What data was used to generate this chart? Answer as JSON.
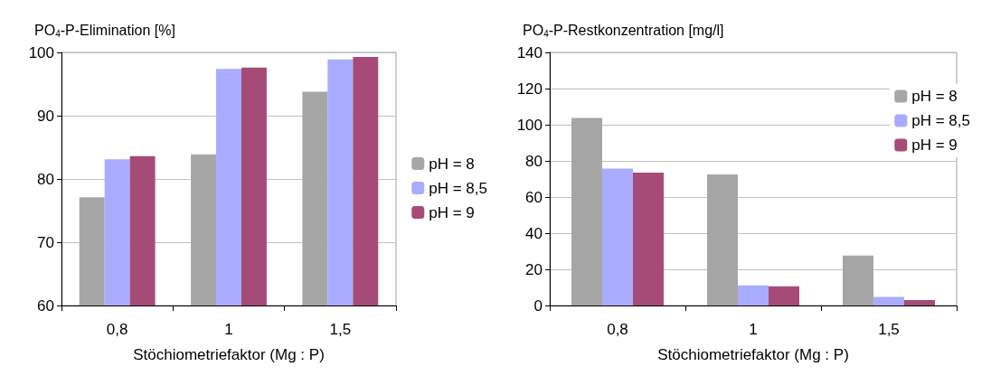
{
  "chart_data": [
    {
      "type": "bar",
      "ylabel": "PO$_{4}$-P-Elimination [%]",
      "xlabel": "Stöchiometriefaktor (Mg : P)",
      "categories": [
        "0,8",
        "1",
        "1,5"
      ],
      "series": [
        {
          "name": "pH = 8",
          "color": "#a6a6a6",
          "values": [
            77.1,
            83.9,
            93.8
          ]
        },
        {
          "name": "pH = 8,5",
          "color": "#a9acfe",
          "values": [
            83.1,
            97.4,
            98.9
          ]
        },
        {
          "name": "pH = 9",
          "color": "#a64b77",
          "values": [
            83.6,
            97.6,
            99.3
          ]
        }
      ],
      "ylim": [
        60,
        100
      ],
      "yticks": [
        60,
        70,
        80,
        90,
        100
      ],
      "grid": "y",
      "legend": "right"
    },
    {
      "type": "bar",
      "ylabel": "PO$_{4}$-P-Restkonzentration [mg/l]",
      "xlabel": "Stöchiometriefaktor (Mg : P)",
      "categories": [
        "0,8",
        "1",
        "1,5"
      ],
      "series": [
        {
          "name": "pH = 8",
          "color": "#a6a6a6",
          "values": [
            103.8,
            72.5,
            27.6
          ]
        },
        {
          "name": "pH = 8,5",
          "color": "#a9acfe",
          "values": [
            75.8,
            11.1,
            4.8
          ]
        },
        {
          "name": "pH = 9",
          "color": "#a64b77",
          "values": [
            73.5,
            10.6,
            3.0
          ]
        }
      ],
      "ylim": [
        0,
        140
      ],
      "yticks": [
        0,
        20,
        40,
        60,
        80,
        100,
        120,
        140
      ],
      "grid": "y",
      "legend": "top right"
    }
  ]
}
